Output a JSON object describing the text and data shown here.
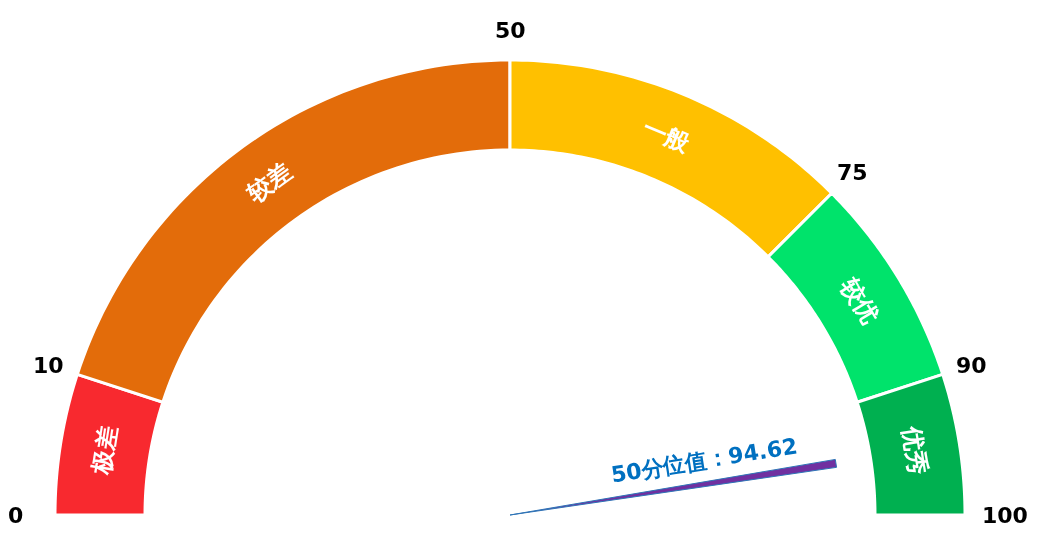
{
  "chart_data": {
    "type": "donut",
    "categories": [
      "极差",
      "较差",
      "一般",
      "较优",
      "优秀"
    ],
    "values": [
      10,
      40,
      25,
      15,
      10
    ],
    "colors": [
      "#f8292f",
      "#e36c0a",
      "#ffc000",
      "#00e36b",
      "#00b050"
    ],
    "needle": "优秀",
    "annotations": [
      "50分位值：94.62",
      "0",
      "10",
      "50",
      "75",
      "90",
      "100"
    ]
  }
}
